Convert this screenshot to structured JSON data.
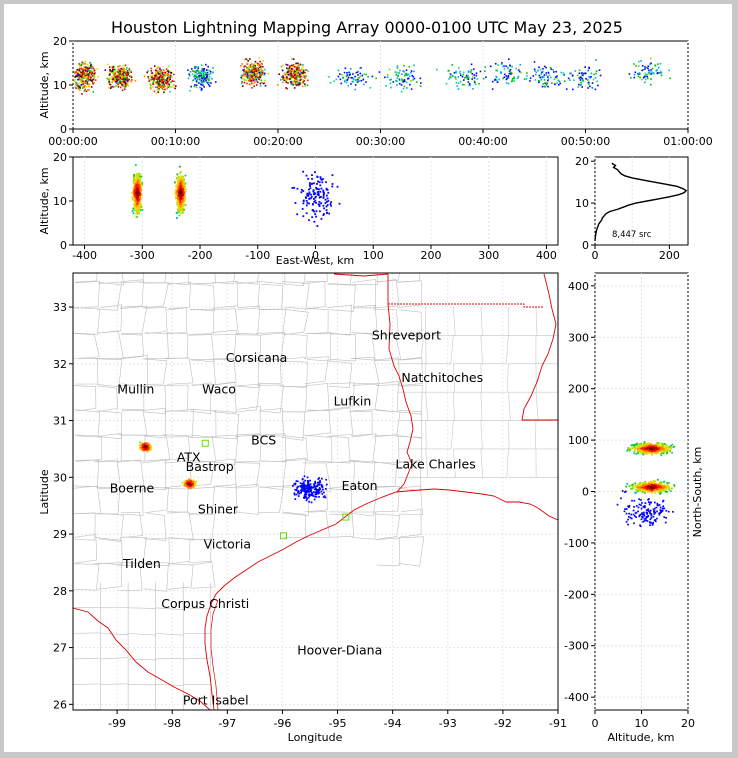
{
  "chart_data": [
    {
      "type": "scatter",
      "panel": "altitude-time",
      "title": "Houston Lightning Mapping Array 0000-0100 UTC May 23, 2025",
      "ylabel": "Altitude, km",
      "ylim": [
        0,
        20
      ],
      "yticks": [
        "0",
        "10",
        "20"
      ],
      "xticks": [
        "00:00:00",
        "00:10:00",
        "00:20:00",
        "00:30:00",
        "00:40:00",
        "00:50:00",
        "01:00:00"
      ],
      "xlim_minutes": [
        0,
        60
      ],
      "clusters": [
        {
          "t": 1.0,
          "alt": 12,
          "density": "high"
        },
        {
          "t": 4.5,
          "alt": 12,
          "density": "high"
        },
        {
          "t": 8.5,
          "alt": 11.5,
          "density": "high"
        },
        {
          "t": 12.5,
          "alt": 12,
          "density": "medium"
        },
        {
          "t": 17.5,
          "alt": 13,
          "density": "high"
        },
        {
          "t": 21.5,
          "alt": 12.5,
          "density": "high"
        },
        {
          "t": 27,
          "alt": 12,
          "density": "low"
        },
        {
          "t": 32,
          "alt": 12,
          "density": "low"
        },
        {
          "t": 38,
          "alt": 12,
          "density": "low"
        },
        {
          "t": 42,
          "alt": 13,
          "density": "low"
        },
        {
          "t": 46,
          "alt": 12,
          "density": "low"
        },
        {
          "t": 50,
          "alt": 12,
          "density": "low"
        },
        {
          "t": 56,
          "alt": 13,
          "density": "low"
        }
      ]
    },
    {
      "type": "scatter",
      "panel": "altitude-eastwest",
      "xlabel": "East-West, km",
      "ylabel": "Altitude, km",
      "xlim": [
        -420,
        420
      ],
      "ylim": [
        0,
        20
      ],
      "xticks": [
        "-400",
        "-300",
        "-200",
        "-100",
        "0",
        "100",
        "200",
        "300",
        "400"
      ],
      "yticks": [
        "0",
        "10",
        "20"
      ],
      "clusters": [
        {
          "x": -310,
          "alt": 12,
          "density": "high"
        },
        {
          "x": -235,
          "alt": 12,
          "density": "high"
        },
        {
          "x": 0,
          "alt": 11,
          "density": "low"
        }
      ]
    },
    {
      "type": "line",
      "panel": "altitude-histogram",
      "annotation": "8,447 src",
      "xlim": [
        0,
        250
      ],
      "ylim": [
        0,
        21
      ],
      "xticks": [
        "0",
        "200"
      ],
      "yticks": [
        "0",
        "10",
        "20"
      ],
      "points": [
        [
          45,
          19.5
        ],
        [
          55,
          19
        ],
        [
          50,
          18.5
        ],
        [
          60,
          18
        ],
        [
          65,
          17.5
        ],
        [
          70,
          17
        ],
        [
          80,
          16.5
        ],
        [
          100,
          16
        ],
        [
          130,
          15.5
        ],
        [
          160,
          15
        ],
        [
          190,
          14.5
        ],
        [
          220,
          14
        ],
        [
          235,
          13.5
        ],
        [
          245,
          13
        ],
        [
          240,
          12.5
        ],
        [
          225,
          12
        ],
        [
          200,
          11.5
        ],
        [
          170,
          11
        ],
        [
          140,
          10.5
        ],
        [
          110,
          10
        ],
        [
          90,
          9.5
        ],
        [
          75,
          9
        ],
        [
          60,
          8.5
        ],
        [
          40,
          8
        ],
        [
          30,
          7.5
        ],
        [
          25,
          7
        ],
        [
          20,
          6.5
        ],
        [
          18,
          6
        ],
        [
          14,
          5.5
        ],
        [
          10,
          5
        ],
        [
          8,
          4.5
        ],
        [
          6,
          4
        ],
        [
          4,
          3.5
        ],
        [
          3,
          3
        ],
        [
          2,
          2.5
        ],
        [
          1,
          2
        ],
        [
          0,
          1
        ]
      ]
    },
    {
      "type": "scatter",
      "panel": "plan-view-map",
      "xlabel": "Longitude",
      "ylabel": "Latitude",
      "xlim": [
        -99.8,
        -91
      ],
      "ylim": [
        25.9,
        33.6
      ],
      "xticks": [
        "-99",
        "-98",
        "-97",
        "-96",
        "-95",
        "-94",
        "-93",
        "-92",
        "-91"
      ],
      "yticks": [
        "26",
        "27",
        "28",
        "29",
        "30",
        "31",
        "32",
        "33"
      ],
      "clusters": [
        {
          "lon": -98.5,
          "lat": 30.55,
          "density": "high"
        },
        {
          "lon": -97.7,
          "lat": 29.9,
          "density": "high"
        },
        {
          "lon": -95.5,
          "lat": 29.8,
          "density": "low"
        }
      ],
      "cities": [
        {
          "name": "Shreveport",
          "lon": -93.75,
          "lat": 32.5,
          "color": "#000000"
        },
        {
          "name": "Corsicana",
          "lon": -96.47,
          "lat": 32.1,
          "color": "#000000"
        },
        {
          "name": "Natchitoches",
          "lon": -93.1,
          "lat": 31.75,
          "color": "#000000"
        },
        {
          "name": "Mullin",
          "lon": -98.66,
          "lat": 31.55,
          "color": "#ff8040"
        },
        {
          "name": "Waco",
          "lon": -97.15,
          "lat": 31.55,
          "color": "#000000"
        },
        {
          "name": "Lufkin",
          "lon": -94.73,
          "lat": 31.34,
          "color": "#000000"
        },
        {
          "name": "BCS",
          "lon": -96.34,
          "lat": 30.65,
          "color": "#800000"
        },
        {
          "name": "ATX",
          "lon": -97.7,
          "lat": 30.35,
          "color": "#ff8040"
        },
        {
          "name": "Bastrop",
          "lon": -97.32,
          "lat": 30.18,
          "color": "#000000"
        },
        {
          "name": "Lake Charles",
          "lon": -93.22,
          "lat": 30.23,
          "color": "#000000"
        },
        {
          "name": "Boerne",
          "lon": -98.73,
          "lat": 29.8,
          "color": "#000000"
        },
        {
          "name": "Eaton",
          "lon": -94.6,
          "lat": 29.85,
          "color": "#ffa000"
        },
        {
          "name": "Shiner",
          "lon": -97.17,
          "lat": 29.43,
          "color": "#000000"
        },
        {
          "name": "Victoria",
          "lon": -97.0,
          "lat": 28.82,
          "color": "#000000"
        },
        {
          "name": "Tilden",
          "lon": -98.55,
          "lat": 28.47,
          "color": "#000000"
        },
        {
          "name": "Corpus Christi",
          "lon": -97.4,
          "lat": 27.77,
          "color": "#000000"
        },
        {
          "name": "Hoover-Diana",
          "lon": -94.96,
          "lat": 26.95,
          "color": "#0000ff"
        },
        {
          "name": "Port Isabel",
          "lon": -97.21,
          "lat": 26.07,
          "color": "#000000"
        }
      ],
      "stations": [
        {
          "lon": -97.4,
          "lat": 30.6
        },
        {
          "lon": -95.98,
          "lat": 28.97
        },
        {
          "lon": -94.85,
          "lat": 29.3
        }
      ]
    },
    {
      "type": "scatter",
      "panel": "northsouth-altitude",
      "xlabel": "Altitude, km",
      "ylabel": "North-South, km",
      "xlim": [
        0,
        20
      ],
      "ylim": [
        -425,
        425
      ],
      "xticks": [
        "0",
        "10",
        "20"
      ],
      "yticks": [
        "-400",
        "-300",
        "-200",
        "-100",
        "0",
        "100",
        "200",
        "300",
        "400"
      ],
      "clusters": [
        {
          "alt": 12,
          "y": 85,
          "density": "high"
        },
        {
          "alt": 12,
          "y": 10,
          "density": "high"
        },
        {
          "alt": 11,
          "y": -40,
          "density": "low"
        }
      ]
    }
  ]
}
